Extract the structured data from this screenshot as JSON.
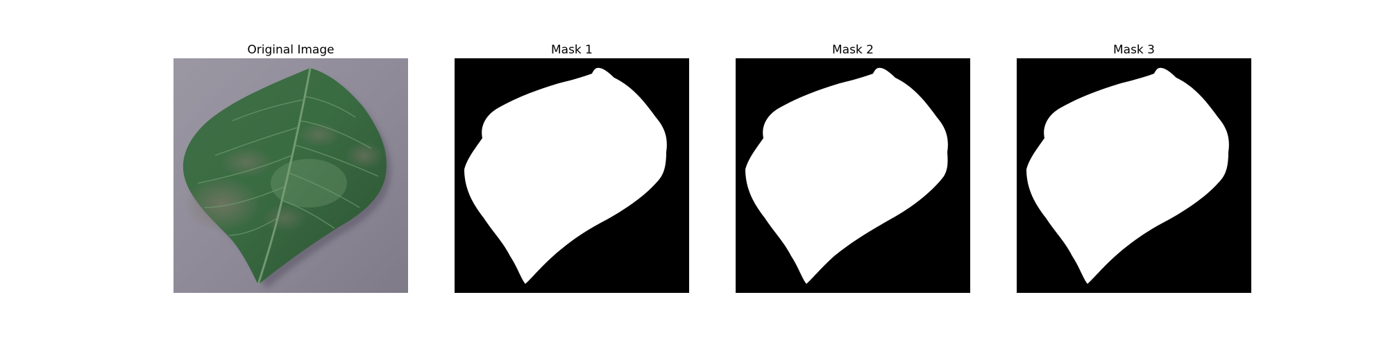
{
  "panels": [
    {
      "title": "Original Image",
      "kind": "photo"
    },
    {
      "title": "Mask 1",
      "kind": "mask"
    },
    {
      "title": "Mask 2",
      "kind": "mask"
    },
    {
      "title": "Mask 3",
      "kind": "mask"
    }
  ],
  "colors": {
    "mask_background": "#000000",
    "mask_foreground": "#ffffff",
    "surface": "#8e8a97",
    "leaf_dark": "#2f5a36",
    "leaf_mid": "#3f7447",
    "leaf_light": "#5e8d5f",
    "blight": "#6c6a5d"
  }
}
